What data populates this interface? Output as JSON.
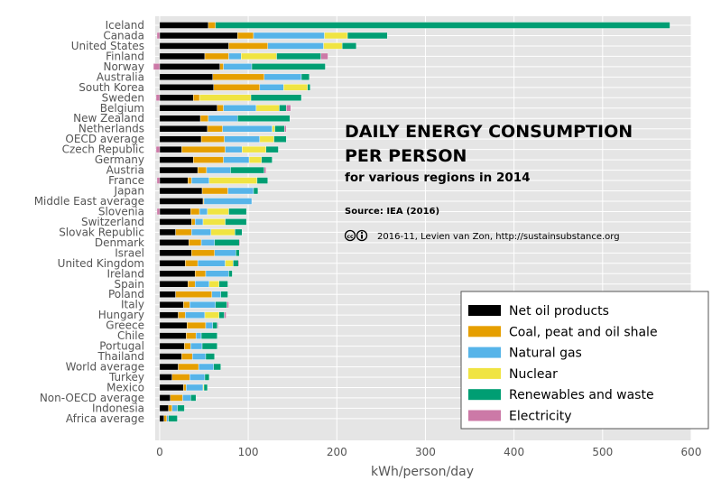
{
  "chart_data": {
    "type": "bar",
    "orientation": "horizontal",
    "stacked": true,
    "title": "DAILY ENERGY CONSUMPTION PER PERSON",
    "title_lines": [
      "DAILY ENERGY CONSUMPTION",
      "PER PERSON"
    ],
    "subtitle": "for various regions in 2014",
    "source": "Source: IEA (2016)",
    "credit": "2016-11, Levien van Zon, http://sustainsubstance.org",
    "xlabel": "kWh/person/day",
    "ylabel": "",
    "xlim": [
      -5,
      600
    ],
    "xticks": [
      "0",
      "100",
      "200",
      "300",
      "400",
      "500",
      "600"
    ],
    "grid": true,
    "legend_position": "bottom-right",
    "colors": {
      "background": "#e5e5e5",
      "grid": "#ffffff",
      "oil": "#000000",
      "coal": "#e69f00",
      "gas": "#56b4e9",
      "nuclear": "#f0e442",
      "renew": "#009e73",
      "elec": "#cc79a7"
    },
    "categories": [
      "Iceland",
      "Canada",
      "United States",
      "Finland",
      "Norway",
      "Australia",
      "South Korea",
      "Sweden",
      "Belgium",
      "New Zealand",
      "Netherlands",
      "OECD average",
      "Czech Republic",
      "Germany",
      "Austria",
      "France",
      "Japan",
      "Middle East average",
      "Slovenia",
      "Switzerland",
      "Slovak Republic",
      "Denmark",
      "Israel",
      "United Kingdom",
      "Ireland",
      "Spain",
      "Poland",
      "Italy",
      "Hungary",
      "Greece",
      "Chile",
      "Portugal",
      "Thailand",
      "World average",
      "Turkey",
      "Mexico",
      "Non-OECD average",
      "Indonesia",
      "Africa average"
    ],
    "series": [
      {
        "name": "Net oil products",
        "key": "oil",
        "values": [
          55,
          88,
          78,
          51,
          68,
          60,
          61,
          38,
          65,
          46,
          54,
          47,
          25,
          38,
          43,
          32,
          48,
          49,
          35,
          36,
          18,
          33,
          36,
          29,
          40,
          32,
          18,
          27,
          21,
          31,
          30,
          28,
          25,
          21,
          14,
          27,
          12,
          10,
          5
        ]
      },
      {
        "name": "Coal, peat and oil shale",
        "key": "coal",
        "values": [
          8,
          18,
          44,
          27,
          4,
          58,
          52,
          7,
          7,
          9,
          17,
          26,
          49,
          34,
          10,
          4,
          29,
          1,
          10,
          4,
          18,
          14,
          26,
          14,
          12,
          8,
          41,
          7,
          8,
          21,
          11,
          7,
          12,
          23,
          20,
          3,
          14,
          4,
          3
        ]
      },
      {
        "name": "Natural gas",
        "key": "gas",
        "values": [
          0,
          80,
          63,
          14,
          32,
          42,
          27,
          0,
          37,
          33,
          56,
          40,
          19,
          29,
          27,
          20,
          29,
          54,
          9,
          9,
          22,
          15,
          24,
          31,
          26,
          16,
          10,
          29,
          22,
          8,
          6,
          13,
          15,
          17,
          17,
          19,
          9,
          6,
          2
        ]
      },
      {
        "name": "Nuclear",
        "key": "nuclear",
        "values": [
          0,
          26,
          21,
          40,
          0,
          0,
          27,
          58,
          26,
          0,
          3,
          16,
          27,
          14,
          0,
          54,
          0,
          0,
          24,
          25,
          27,
          0,
          0,
          9,
          0,
          11,
          0,
          0,
          16,
          0,
          0,
          0,
          0,
          0,
          0,
          1,
          0,
          0,
          0
        ]
      },
      {
        "name": "Renewables and waste",
        "key": "renew",
        "values": [
          513,
          45,
          16,
          50,
          83,
          9,
          3,
          57,
          8,
          59,
          11,
          14,
          14,
          12,
          38,
          12,
          5,
          0,
          20,
          24,
          8,
          28,
          4,
          6,
          4,
          10,
          8,
          13,
          6,
          5,
          18,
          17,
          10,
          8,
          5,
          4,
          6,
          8,
          10
        ]
      },
      {
        "name": "Electricity",
        "key": "elec",
        "values": [
          0,
          -3,
          0,
          8,
          -7,
          0,
          0,
          -4,
          5,
          0,
          2,
          0,
          -4,
          0,
          2,
          -3,
          0,
          0,
          -3,
          0,
          0,
          1,
          0,
          1,
          0,
          0,
          0,
          2,
          2,
          1,
          0,
          0,
          0,
          0,
          0,
          0,
          0,
          0,
          0
        ]
      }
    ]
  }
}
